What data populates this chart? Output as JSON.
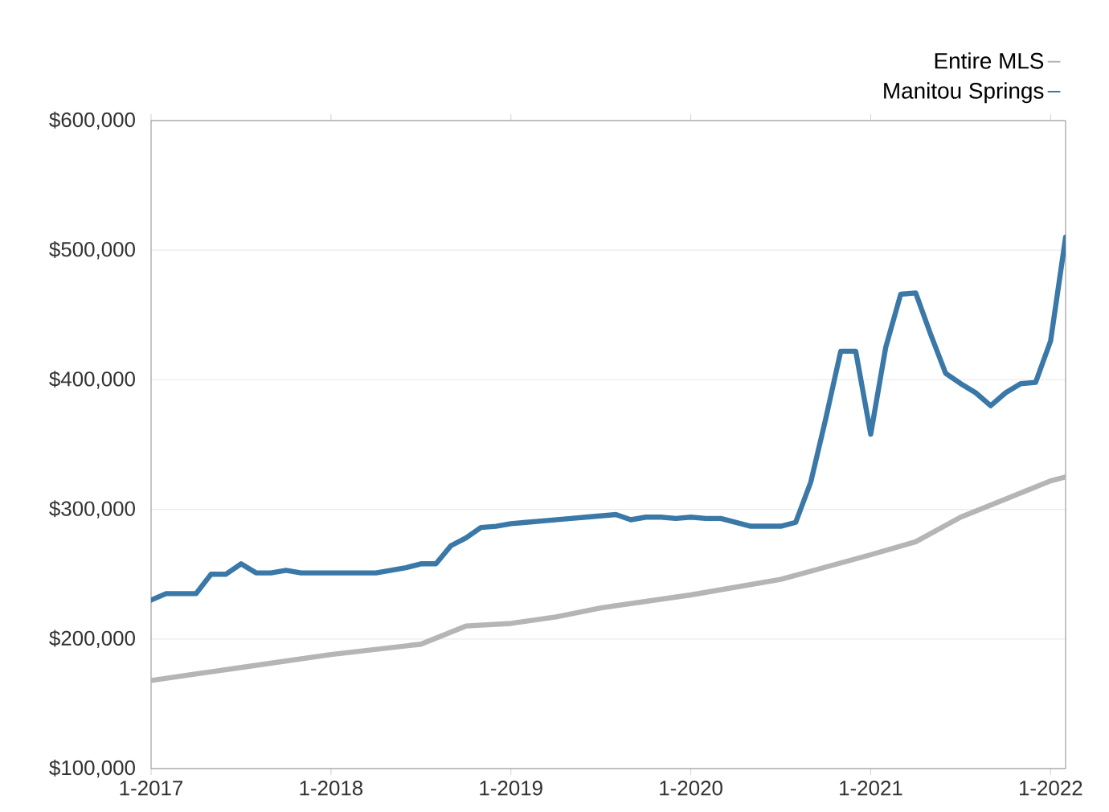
{
  "chart_data": {
    "type": "line",
    "xlim": [
      "2017-01",
      "2022-02"
    ],
    "xticks": [
      {
        "value": "2017-01",
        "label": "1-2017"
      },
      {
        "value": "2018-01",
        "label": "1-2018"
      },
      {
        "value": "2019-01",
        "label": "1-2019"
      },
      {
        "value": "2020-01",
        "label": "1-2020"
      },
      {
        "value": "2021-01",
        "label": "1-2021"
      },
      {
        "value": "2022-01",
        "label": "1-2022"
      }
    ],
    "ylim": [
      100000,
      600000
    ],
    "yticks": [
      {
        "value": 100000,
        "label": "$100,000"
      },
      {
        "value": 200000,
        "label": "$200,000"
      },
      {
        "value": 300000,
        "label": "$300,000"
      },
      {
        "value": 400000,
        "label": "$400,000"
      },
      {
        "value": 500000,
        "label": "$500,000"
      },
      {
        "value": 600000,
        "label": "$600,000"
      }
    ],
    "grid": "y",
    "legend": "top right",
    "marker": "none",
    "line_style": "solid",
    "series": [
      {
        "name": "Entire MLS",
        "color": "#b5b5b5",
        "x": [
          "2017-01",
          "2017-07",
          "2018-01",
          "2018-07",
          "2018-10",
          "2019-01",
          "2019-04",
          "2019-07",
          "2020-01",
          "2020-07",
          "2021-01",
          "2021-04",
          "2021-07",
          "2021-10",
          "2022-01",
          "2022-02"
        ],
        "values": [
          168000,
          178000,
          188000,
          196000,
          210000,
          212000,
          217000,
          224000,
          234000,
          246000,
          265000,
          275000,
          294000,
          308000,
          322000,
          325000
        ]
      },
      {
        "name": "Manitou Springs",
        "color": "#3a78a8",
        "x": [
          "2017-01",
          "2017-02",
          "2017-03",
          "2017-04",
          "2017-05",
          "2017-06",
          "2017-07",
          "2017-08",
          "2017-09",
          "2017-10",
          "2017-11",
          "2017-12",
          "2018-01",
          "2018-02",
          "2018-03",
          "2018-04",
          "2018-05",
          "2018-06",
          "2018-07",
          "2018-08",
          "2018-09",
          "2018-10",
          "2018-11",
          "2018-12",
          "2019-01",
          "2019-02",
          "2019-03",
          "2019-04",
          "2019-05",
          "2019-06",
          "2019-07",
          "2019-08",
          "2019-09",
          "2019-10",
          "2019-11",
          "2019-12",
          "2020-01",
          "2020-02",
          "2020-03",
          "2020-04",
          "2020-05",
          "2020-06",
          "2020-07",
          "2020-08",
          "2020-09",
          "2020-10",
          "2020-11",
          "2020-12",
          "2021-01",
          "2021-02",
          "2021-03",
          "2021-04",
          "2021-05",
          "2021-06",
          "2021-07",
          "2021-08",
          "2021-09",
          "2021-10",
          "2021-11",
          "2021-12",
          "2022-01",
          "2022-02"
        ],
        "values": [
          230000,
          235000,
          235000,
          235000,
          250000,
          250000,
          258000,
          251000,
          251000,
          253000,
          251000,
          251000,
          251000,
          251000,
          251000,
          251000,
          253000,
          255000,
          258000,
          258000,
          272000,
          278000,
          286000,
          287000,
          289000,
          290000,
          291000,
          292000,
          293000,
          294000,
          295000,
          296000,
          292000,
          294000,
          294000,
          293000,
          294000,
          293000,
          293000,
          290000,
          287000,
          287000,
          287000,
          290000,
          321000,
          370000,
          422000,
          422000,
          358000,
          425000,
          466000,
          467000,
          435000,
          405000,
          397000,
          390000,
          380000,
          390000,
          397000,
          398000,
          430000,
          510000
        ]
      }
    ]
  }
}
